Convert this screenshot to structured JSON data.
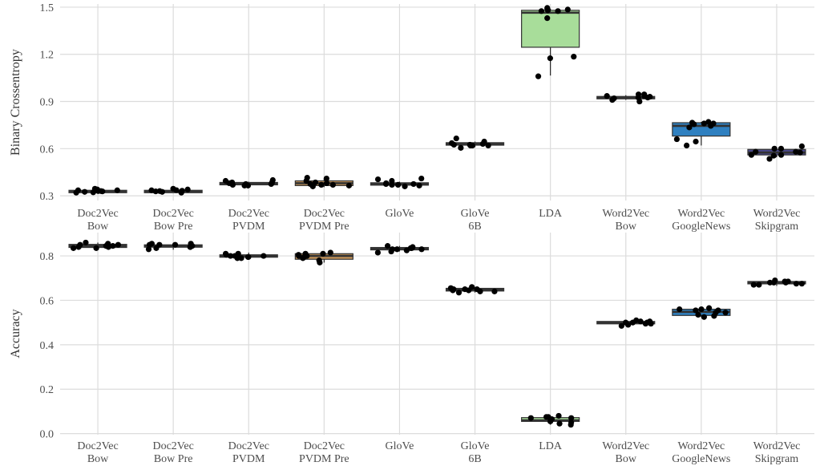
{
  "categories": [
    [
      "Doc2Vec",
      "Bow"
    ],
    [
      "Doc2Vec",
      "Bow Pre"
    ],
    [
      "Doc2Vec",
      "PVDM"
    ],
    [
      "Doc2Vec",
      "PVDM Pre"
    ],
    [
      "GloVe",
      ""
    ],
    [
      "GloVe",
      "6B"
    ],
    [
      "LDA",
      ""
    ],
    [
      "Word2Vec",
      "Bow"
    ],
    [
      "Word2Vec",
      "GoogleNews"
    ],
    [
      "Word2Vec",
      "Skipgram"
    ]
  ],
  "colors": [
    "#4a4a4a",
    "#4a4a4a",
    "#4a4a4a",
    "#c8965a",
    "#4a4a4a",
    "#4a4a4a",
    "#a8dd9a",
    "#4a4a4a",
    "#2f80c0",
    "#4b4a8c"
  ],
  "chart_data": [
    {
      "type": "box",
      "ylabel": "Binary Crossentropy",
      "ylim": [
        0.27,
        1.52
      ],
      "yticks": [
        "0.3",
        "0.6",
        "0.9",
        "1.2",
        "1.5"
      ],
      "yticks_values": [
        0.3,
        0.6,
        0.9,
        1.2,
        1.5
      ],
      "grid": true,
      "boxes": [
        {
          "q1": 0.325,
          "median": 0.33,
          "q3": 0.335,
          "wlow": 0.32,
          "whigh": 0.34
        },
        {
          "q1": 0.325,
          "median": 0.33,
          "q3": 0.335,
          "wlow": 0.32,
          "whigh": 0.34
        },
        {
          "q1": 0.372,
          "median": 0.378,
          "q3": 0.385,
          "wlow": 0.365,
          "whigh": 0.39
        },
        {
          "q1": 0.365,
          "median": 0.38,
          "q3": 0.395,
          "wlow": 0.355,
          "whigh": 0.41
        },
        {
          "q1": 0.368,
          "median": 0.375,
          "q3": 0.383,
          "wlow": 0.36,
          "whigh": 0.39
        },
        {
          "q1": 0.622,
          "median": 0.63,
          "q3": 0.638,
          "wlow": 0.61,
          "whigh": 0.645
        },
        {
          "q1": 1.245,
          "median": 1.465,
          "q3": 1.48,
          "wlow": 1.065,
          "whigh": 1.49
        },
        {
          "q1": 0.918,
          "median": 0.925,
          "q3": 0.932,
          "wlow": 0.91,
          "whigh": 0.94
        },
        {
          "q1": 0.68,
          "median": 0.745,
          "q3": 0.765,
          "wlow": 0.62,
          "whigh": 0.77
        },
        {
          "q1": 0.56,
          "median": 0.575,
          "q3": 0.595,
          "wlow": 0.545,
          "whigh": 0.61
        }
      ],
      "points": [
        [
          0.34,
          0.33,
          0.335,
          0.325,
          0.345,
          0.33,
          0.32,
          0.335,
          0.328,
          0.322
        ],
        [
          0.325,
          0.34,
          0.32,
          0.335,
          0.345,
          0.33,
          0.332,
          0.328,
          0.336
        ],
        [
          0.365,
          0.385,
          0.395,
          0.375,
          0.4,
          0.38,
          0.375,
          0.385,
          0.37,
          0.365
        ],
        [
          0.38,
          0.37,
          0.36,
          0.415,
          0.365,
          0.37,
          0.375,
          0.41,
          0.385,
          0.395
        ],
        [
          0.375,
          0.37,
          0.395,
          0.405,
          0.41,
          0.38,
          0.365,
          0.37,
          0.375,
          0.36
        ],
        [
          0.625,
          0.62,
          0.63,
          0.665,
          0.605,
          0.62,
          0.625,
          0.635,
          0.62,
          0.645
        ],
        [
          1.475,
          1.185,
          1.475,
          1.43,
          1.175,
          1.49,
          1.485,
          1.48,
          1.495,
          1.06
        ],
        [
          0.91,
          0.925,
          0.935,
          0.92,
          0.9,
          0.945,
          0.93,
          0.925,
          0.935,
          0.945
        ],
        [
          0.77,
          0.76,
          0.66,
          0.765,
          0.755,
          0.62,
          0.645,
          0.745,
          0.76,
          0.735
        ],
        [
          0.575,
          0.56,
          0.535,
          0.6,
          0.555,
          0.58,
          0.615,
          0.6,
          0.58,
          0.56
        ]
      ]
    },
    {
      "type": "box",
      "ylabel": "Accuracy",
      "ylim": [
        -0.005,
        0.905
      ],
      "yticks": [
        "0.0",
        "0.2",
        "0.4",
        "0.6",
        "0.8"
      ],
      "yticks_values": [
        0.0,
        0.2,
        0.4,
        0.6,
        0.8
      ],
      "grid": true,
      "boxes": [
        {
          "q1": 0.838,
          "median": 0.845,
          "q3": 0.852,
          "wlow": 0.83,
          "whigh": 0.86
        },
        {
          "q1": 0.84,
          "median": 0.845,
          "q3": 0.85,
          "wlow": 0.828,
          "whigh": 0.855
        },
        {
          "q1": 0.795,
          "median": 0.8,
          "q3": 0.805,
          "wlow": 0.785,
          "whigh": 0.815
        },
        {
          "q1": 0.785,
          "median": 0.8,
          "q3": 0.81,
          "wlow": 0.77,
          "whigh": 0.815
        },
        {
          "q1": 0.828,
          "median": 0.833,
          "q3": 0.838,
          "wlow": 0.82,
          "whigh": 0.845
        },
        {
          "q1": 0.642,
          "median": 0.648,
          "q3": 0.654,
          "wlow": 0.635,
          "whigh": 0.66
        },
        {
          "q1": 0.055,
          "median": 0.06,
          "q3": 0.072,
          "wlow": 0.04,
          "whigh": 0.08
        },
        {
          "q1": 0.495,
          "median": 0.5,
          "q3": 0.505,
          "wlow": 0.485,
          "whigh": 0.51
        },
        {
          "q1": 0.532,
          "median": 0.548,
          "q3": 0.56,
          "wlow": 0.525,
          "whigh": 0.565
        },
        {
          "q1": 0.675,
          "median": 0.68,
          "q3": 0.685,
          "wlow": 0.665,
          "whigh": 0.69
        }
      ],
      "points": [
        [
          0.835,
          0.84,
          0.845,
          0.85,
          0.86,
          0.835,
          0.85,
          0.84,
          0.855,
          0.845
        ],
        [
          0.845,
          0.85,
          0.84,
          0.835,
          0.85,
          0.855,
          0.83,
          0.85,
          0.84,
          0.855
        ],
        [
          0.8,
          0.795,
          0.81,
          0.79,
          0.795,
          0.805,
          0.79,
          0.8,
          0.81,
          0.8
        ],
        [
          0.81,
          0.8,
          0.805,
          0.815,
          0.79,
          0.78,
          0.795,
          0.81,
          0.77,
          0.8
        ],
        [
          0.84,
          0.83,
          0.835,
          0.82,
          0.83,
          0.835,
          0.825,
          0.845,
          0.83,
          0.815
        ],
        [
          0.64,
          0.65,
          0.645,
          0.635,
          0.65,
          0.655,
          0.64,
          0.66,
          0.645,
          0.65
        ],
        [
          0.05,
          0.065,
          0.075,
          0.07,
          0.04,
          0.08,
          0.055,
          0.07,
          0.045,
          0.075
        ],
        [
          0.505,
          0.495,
          0.485,
          0.5,
          0.51,
          0.505,
          0.5,
          0.49,
          0.495,
          0.5
        ],
        [
          0.555,
          0.535,
          0.56,
          0.545,
          0.525,
          0.565,
          0.555,
          0.53,
          0.545,
          0.56
        ],
        [
          0.68,
          0.675,
          0.685,
          0.67,
          0.68,
          0.69,
          0.675,
          0.685,
          0.67,
          0.68
        ]
      ]
    }
  ]
}
